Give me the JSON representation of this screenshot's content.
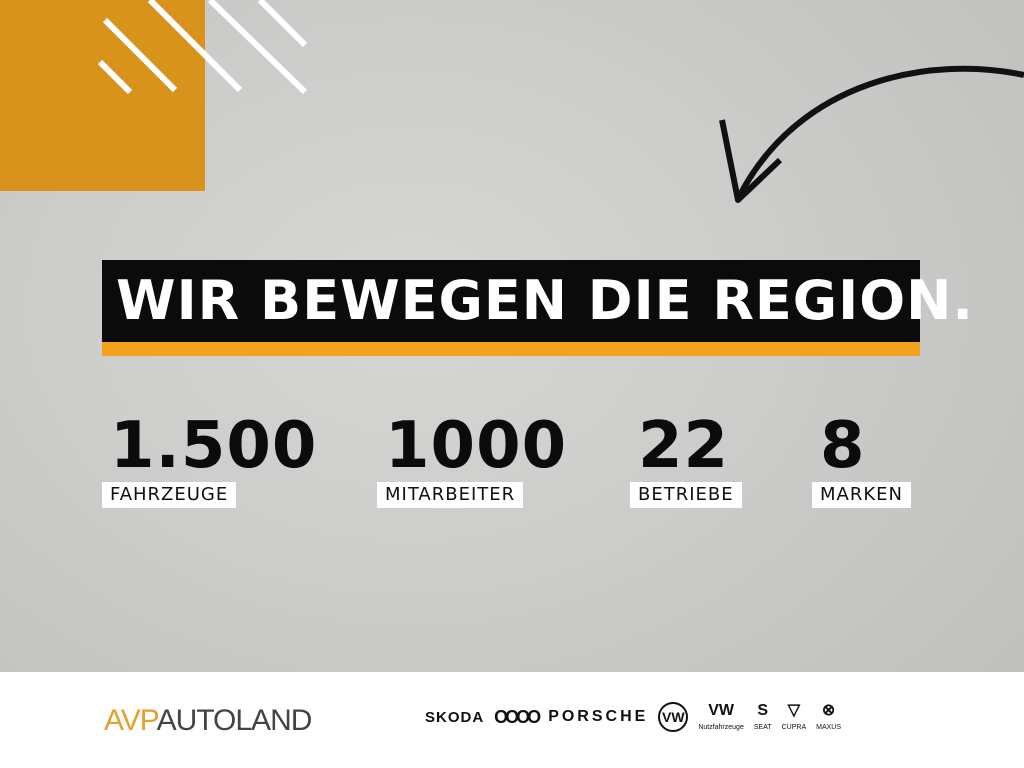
{
  "headline": "WIR BEWEGEN DIE REGION.",
  "stats": [
    {
      "value": "1.500",
      "label": "FAHRZEUGE"
    },
    {
      "value": "1000",
      "label": "MITARBEITER"
    },
    {
      "value": "22",
      "label": "BETRIEBE"
    },
    {
      "value": "8",
      "label": "MARKEN"
    }
  ],
  "footer": {
    "brand_prefix": "AVP",
    "brand_name": "AUTOLAND",
    "logos": {
      "skoda": "SKODA",
      "audi": "OOOO",
      "porsche": "PORSCHE",
      "vw": "VW",
      "vwn": "Nutzfahrzeuge",
      "seat": "SEAT",
      "cupra": "CUPRA",
      "maxus": "MAXUS"
    }
  },
  "colors": {
    "accent": "#f2a21c",
    "orange_square": "#d8931c",
    "banner": "#0b0b0b"
  }
}
